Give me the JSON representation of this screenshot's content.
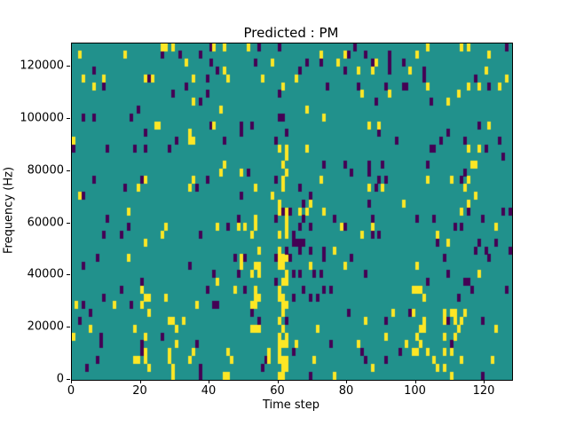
{
  "figure": {
    "title": "Predicted : PM",
    "xlabel": "Time step",
    "ylabel": "Frequency (Hz)"
  },
  "chart_data": {
    "type": "heatmap",
    "title": "Predicted : PM",
    "xlabel": "Time step",
    "ylabel": "Frequency (Hz)",
    "x_range": [
      0,
      128
    ],
    "y_range": [
      0,
      129000
    ],
    "x_ticks": [
      0,
      20,
      40,
      60,
      80,
      100,
      120
    ],
    "y_ticks": [
      0,
      20000,
      40000,
      60000,
      80000,
      100000,
      120000
    ],
    "grid": {
      "cols": 128,
      "rows": 43,
      "freq_bin_hz": 3000
    },
    "colormap": "viridis",
    "value_colors": {
      "background": "#21918c",
      "positive": "#fde725",
      "negative": "#440154"
    },
    "legend": "none",
    "base_density": {
      "yellow": 0.028,
      "purple": 0.034
    },
    "hotspots": [
      {
        "x": [
          60,
          63
        ],
        "y_hz": [
          0,
          90000
        ],
        "yellow": 0.45,
        "purple": 0.0
      },
      {
        "x": [
          52,
          55
        ],
        "y_hz": [
          20000,
          62000
        ],
        "yellow": 0.35,
        "purple": 0.0
      },
      {
        "x": [
          19,
          23
        ],
        "y_hz": [
          3000,
          36000
        ],
        "yellow": 0.3,
        "purple": 0.05
      },
      {
        "x": [
          99,
          103
        ],
        "y_hz": [
          8000,
          40000
        ],
        "yellow": 0.35,
        "purple": 0.0
      },
      {
        "x": [
          28,
          31
        ],
        "y_hz": [
          0,
          22000
        ],
        "yellow": 0.25,
        "purple": 0.0
      },
      {
        "x": [
          108,
          112
        ],
        "y_hz": [
          0,
          30000
        ],
        "yellow": 0.2,
        "purple": 0.05
      },
      {
        "x": [
          45,
          47
        ],
        "y_hz": [
          0,
          15000
        ],
        "yellow": 0.2,
        "purple": 0.0
      },
      {
        "x": [
          84,
          88
        ],
        "y_hz": [
          55000,
          75000
        ],
        "yellow": 0.0,
        "purple": 0.15
      },
      {
        "x": [
          64,
          70
        ],
        "y_hz": [
          40000,
          70000
        ],
        "yellow": 0.0,
        "purple": 0.12
      },
      {
        "x": [
          0,
          128
        ],
        "y_hz": [
          112000,
          129000
        ],
        "yellow": 0.02,
        "purple": 0.01
      }
    ],
    "seed": 42
  }
}
